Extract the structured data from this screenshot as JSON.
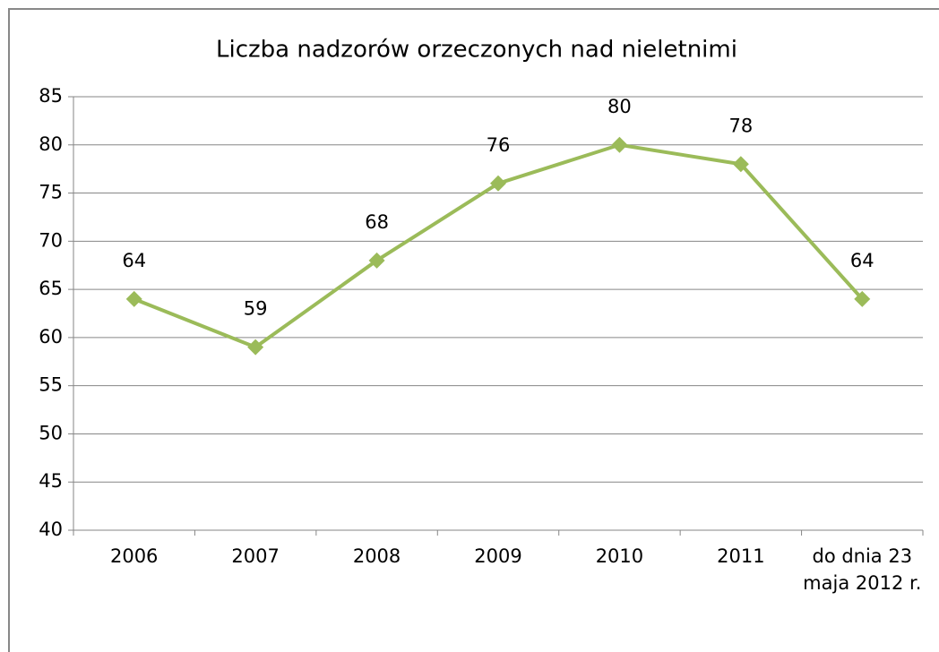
{
  "chart_data": {
    "type": "line",
    "title": "Liczba nadzorów orzeczonych nad nieletnimi",
    "categories": [
      "2006",
      "2007",
      "2008",
      "2009",
      "2010",
      "2011",
      "do dnia 23 maja 2012 r."
    ],
    "values": [
      64,
      59,
      68,
      76,
      80,
      78,
      64
    ],
    "color": "#9bbb59",
    "ylim": [
      40,
      85
    ],
    "yticks": [
      40,
      45,
      50,
      55,
      60,
      65,
      70,
      75,
      80,
      85
    ],
    "grid": true
  }
}
